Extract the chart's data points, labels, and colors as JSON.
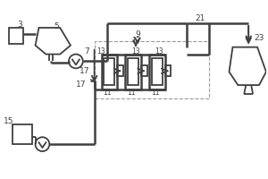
{
  "bg_color": "#ffffff",
  "line_color": "#404040",
  "dashed_color": "#999999",
  "gray_fill": "#d0d0d0",
  "figsize": [
    3.0,
    2.0
  ],
  "dpi": 100,
  "lw": 1.3,
  "lw_thick": 1.8
}
